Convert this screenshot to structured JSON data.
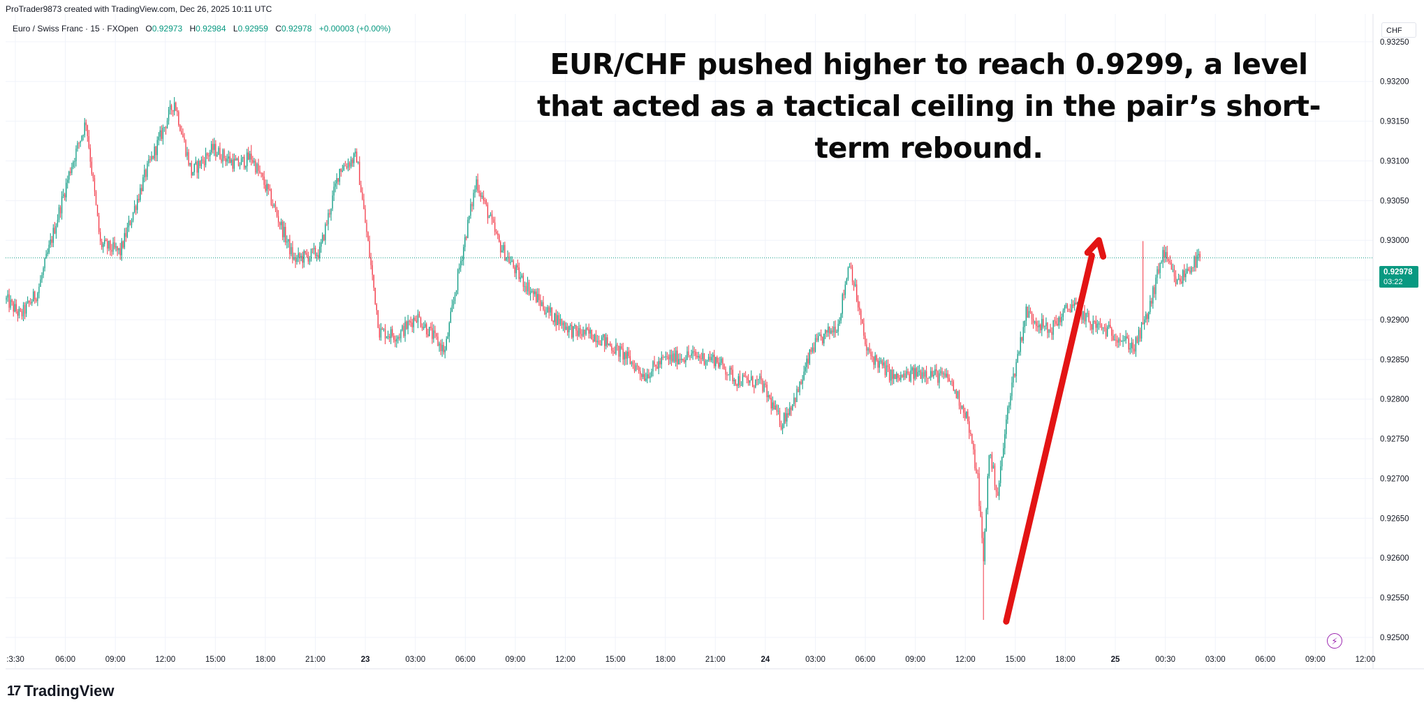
{
  "header": {
    "attribution": "ProTrader9873 created with TradingView.com, Dec 26, 2025 10:11 UTC"
  },
  "symbol": {
    "name": "Euro / Swiss Franc · 15 · FXOpen",
    "open_label": "O",
    "open": "0.92973",
    "high_label": "H",
    "high": "0.92984",
    "low_label": "L",
    "low": "0.92959",
    "close_label": "C",
    "close": "0.92978",
    "change": "+0.00003 (+0.00%)"
  },
  "currency_box": "CHF",
  "price_label": {
    "price": "0.92978",
    "countdown": "03:22"
  },
  "annotation": "EUR/CHF pushed higher to reach 0.9299, a level that acted as a tactical ceiling in the pair’s short-term rebound.",
  "footer": {
    "brand": "TradingView"
  },
  "colors": {
    "up": "#089981",
    "down": "#f23645",
    "arrow": "#e31414",
    "grid": "#f0f3fa"
  },
  "chart_data": {
    "type": "candlestick",
    "timeframe": "15",
    "y_axis": {
      "ticks": [
        "0.93250",
        "0.93200",
        "0.93150",
        "0.93100",
        "0.93050",
        "0.93000",
        "0.92950",
        "0.92900",
        "0.92850",
        "0.92800",
        "0.92750",
        "0.92700",
        "0.92650",
        "0.92600",
        "0.92550",
        "0.92500"
      ],
      "range": [
        0.92485,
        0.93285
      ]
    },
    "x_axis": {
      "ticks": [
        ":3:30",
        "06:00",
        "09:00",
        "12:00",
        "15:00",
        "18:00",
        "21:00",
        "23",
        "03:00",
        "06:00",
        "09:00",
        "12:00",
        "15:00",
        "18:00",
        "21:00",
        "24",
        "03:00",
        "06:00",
        "09:00",
        "12:00",
        "15:00",
        "18:00",
        "25",
        "00:30",
        "03:00",
        "06:00",
        "09:00",
        "12:00"
      ],
      "bold_ticks": [
        "23",
        "24",
        "25"
      ]
    },
    "last_price": 0.92978,
    "anchors": [
      [
        0,
        0.92925
      ],
      [
        10,
        0.92905
      ],
      [
        22,
        0.92935
      ],
      [
        45,
        0.9309
      ],
      [
        56,
        0.9315
      ],
      [
        66,
        0.92995
      ],
      [
        80,
        0.92985
      ],
      [
        97,
        0.9308
      ],
      [
        118,
        0.93175
      ],
      [
        130,
        0.93085
      ],
      [
        145,
        0.93115
      ],
      [
        162,
        0.93095
      ],
      [
        172,
        0.93105
      ],
      [
        184,
        0.9306
      ],
      [
        202,
        0.92975
      ],
      [
        220,
        0.92985
      ],
      [
        234,
        0.9309
      ],
      [
        246,
        0.93105
      ],
      [
        262,
        0.92885
      ],
      [
        275,
        0.9288
      ],
      [
        288,
        0.92905
      ],
      [
        308,
        0.9286
      ],
      [
        318,
        0.92965
      ],
      [
        330,
        0.93075
      ],
      [
        346,
        0.92995
      ],
      [
        360,
        0.92955
      ],
      [
        380,
        0.9291
      ],
      [
        398,
        0.92885
      ],
      [
        414,
        0.9288
      ],
      [
        434,
        0.92855
      ],
      [
        448,
        0.9283
      ],
      [
        462,
        0.9285
      ],
      [
        480,
        0.92855
      ],
      [
        498,
        0.9285
      ],
      [
        512,
        0.92825
      ],
      [
        530,
        0.9282
      ],
      [
        544,
        0.9277
      ],
      [
        556,
        0.9281
      ],
      [
        566,
        0.92865
      ],
      [
        584,
        0.92895
      ],
      [
        592,
        0.92975
      ],
      [
        604,
        0.9286
      ],
      [
        624,
        0.92825
      ],
      [
        644,
        0.92835
      ],
      [
        662,
        0.92825
      ],
      [
        674,
        0.9278
      ],
      [
        682,
        0.927
      ],
      [
        686,
        0.92595
      ],
      [
        690,
        0.92735
      ],
      [
        696,
        0.9268
      ],
      [
        704,
        0.928
      ],
      [
        716,
        0.9291
      ],
      [
        732,
        0.92885
      ],
      [
        748,
        0.9292
      ],
      [
        762,
        0.92895
      ],
      [
        780,
        0.9288
      ],
      [
        792,
        0.92865
      ],
      [
        802,
        0.9291
      ],
      [
        812,
        0.92985
      ],
      [
        822,
        0.92945
      ],
      [
        830,
        0.92965
      ],
      [
        838,
        0.92978
      ]
    ],
    "annotation_arrow": {
      "from": [
        702,
        0.9252
      ],
      "to": [
        767,
        0.93
      ]
    }
  }
}
